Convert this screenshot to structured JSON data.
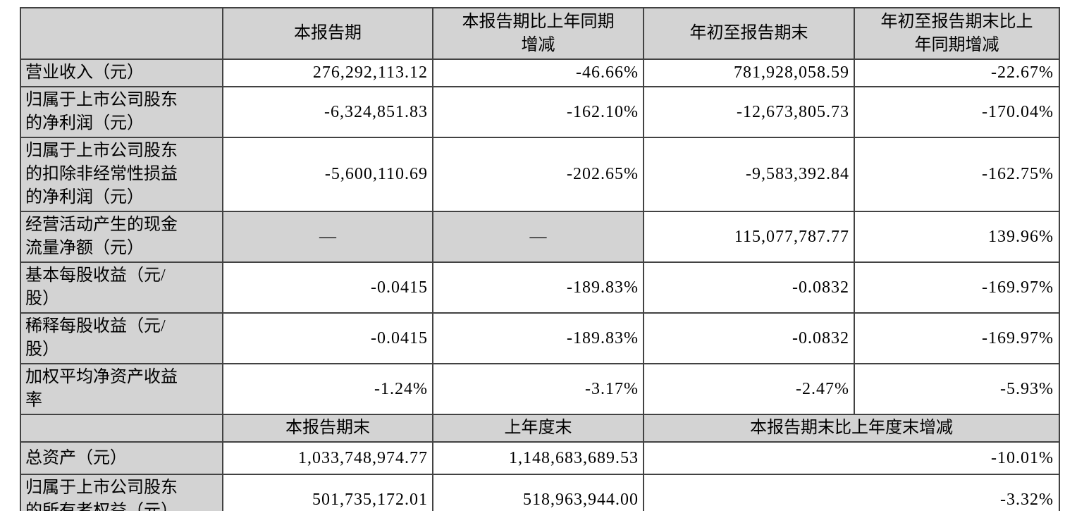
{
  "table": {
    "header_period": {
      "col0": "",
      "col1": "本报告期",
      "col2": "本报告期比上年同期\n增减",
      "col3": "年初至报告期末",
      "col4": "年初至报告期末比上\n年同期增减"
    },
    "period_rows": [
      {
        "label": "营业收入（元）",
        "values": [
          "276,292,113.12",
          "-46.66%",
          "781,928,058.59",
          "-22.67%"
        ]
      },
      {
        "label": "归属于上市公司股东\n的净利润（元）",
        "values": [
          "-6,324,851.83",
          "-162.10%",
          "-12,673,805.73",
          "-170.04%"
        ]
      },
      {
        "label": "归属于上市公司股东\n的扣除非经常性损益\n的净利润（元）",
        "values": [
          "-5,600,110.69",
          "-202.65%",
          "-9,583,392.84",
          "-162.75%"
        ]
      },
      {
        "label": "经营活动产生的现金\n流量净额（元）",
        "values": [
          "—",
          "—",
          "115,077,787.77",
          "139.96%"
        ]
      },
      {
        "label": "基本每股收益（元/\n股）",
        "values": [
          "-0.0415",
          "-189.83%",
          "-0.0832",
          "-169.97%"
        ]
      },
      {
        "label": "稀释每股收益（元/\n股）",
        "values": [
          "-0.0415",
          "-189.83%",
          "-0.0832",
          "-169.97%"
        ]
      },
      {
        "label": "加权平均净资产收益\n率",
        "values": [
          "-1.24%",
          "-3.17%",
          "-2.47%",
          "-5.93%"
        ]
      }
    ],
    "header_yearend": {
      "col0": "",
      "col1": "本报告期末",
      "col2": "上年度末",
      "col3_4": "本报告期末比上年度末增减"
    },
    "yearend_rows": [
      {
        "label": "总资产（元）",
        "values": [
          "1,033,748,974.77",
          "1,148,683,689.53",
          "-10.01%"
        ]
      },
      {
        "label": "归属于上市公司股东\n的所有者权益（元）",
        "values": [
          "501,735,172.01",
          "518,963,944.00",
          "-3.32%"
        ]
      }
    ]
  },
  "colors": {
    "shaded_bg": "#d3d3d3",
    "border": "#424242",
    "text": "#000000",
    "page_bg": "#ffffff"
  }
}
